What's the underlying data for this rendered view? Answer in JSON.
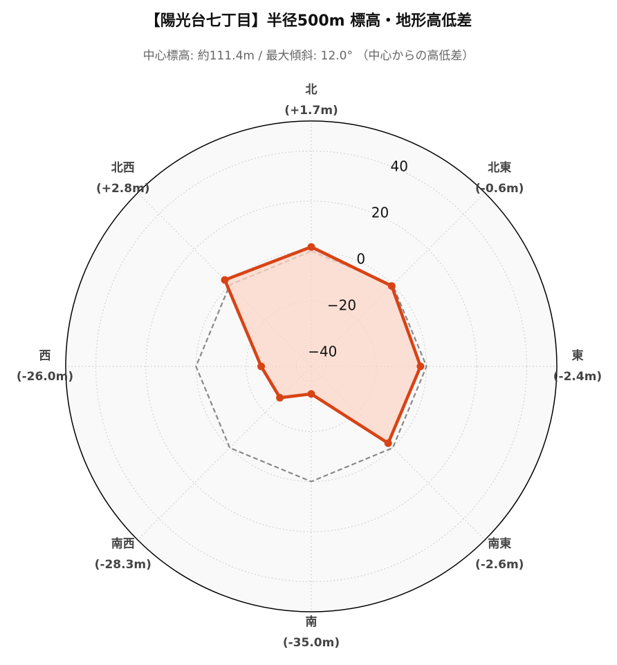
{
  "title": "【陽光台七丁目】半径500m 標高・地形高低差",
  "subtitle": "中心標高: 約111.4m / 最大傾斜: 12.0° （中心からの高低差）",
  "chart_data": {
    "type": "radar",
    "directions": [
      {
        "name": "北",
        "value_label": "(+1.7m)"
      },
      {
        "name": "北東",
        "value_label": "(-0.6m)"
      },
      {
        "name": "東",
        "value_label": "(-2.4m)"
      },
      {
        "name": "南東",
        "value_label": "(-2.6m)"
      },
      {
        "name": "南",
        "value_label": "(-35.0m)"
      },
      {
        "name": "南西",
        "value_label": "(-28.3m)"
      },
      {
        "name": "西",
        "value_label": "(-26.0m)"
      },
      {
        "name": "北西",
        "value_label": "(+2.8m)"
      }
    ],
    "series": [
      {
        "values": [
          1.7,
          -0.6,
          -2.4,
          -2.6,
          -35.0,
          -28.3,
          -26.0,
          2.8
        ],
        "color": "#d84315",
        "fill": "#fbd5c7",
        "style": "solid"
      },
      {
        "values": [
          0,
          0,
          0,
          0,
          0,
          0,
          0,
          0
        ],
        "color": "#888888",
        "style": "dashed"
      }
    ],
    "r_ticks": [
      -40,
      -20,
      0,
      20,
      40
    ],
    "r_tick_labels": [
      "−40",
      "−20",
      "0",
      "20",
      "40"
    ],
    "rlim": [
      -46,
      52
    ],
    "grid": true
  }
}
